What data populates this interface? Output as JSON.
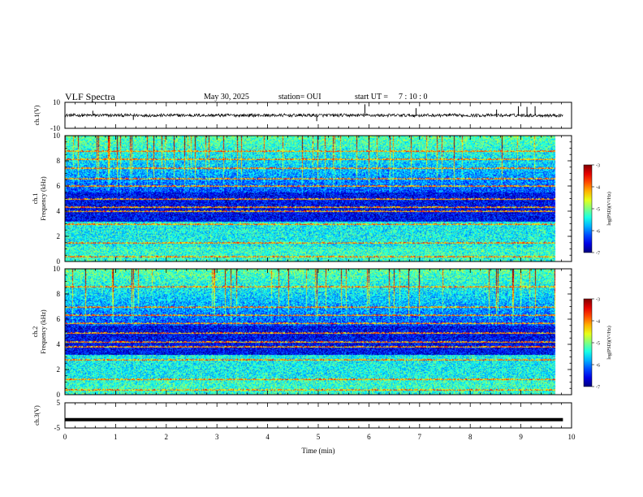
{
  "header": {
    "title": "VLF Spectra",
    "date": "May 30, 2025",
    "station": "station= OUI",
    "start_ut_label": "start  UT  =",
    "start_ut_value": "7 : 10 : 0"
  },
  "chart_data": [
    {
      "type": "line",
      "panel": "ch1-waveform",
      "ylabel": "ch.1(V)",
      "y_ticks": [
        "10",
        "-10"
      ],
      "ylim": [
        -10,
        10
      ],
      "xlim": [
        0,
        10
      ],
      "baseline": 0,
      "noise_amplitude": 1.2,
      "data_end_min": 9.83,
      "spikes": [
        {
          "x": 0.55,
          "y": 3.5
        },
        {
          "x": 1.35,
          "y": -3.5
        },
        {
          "x": 4.97,
          "y": -4.5
        },
        {
          "x": 5.92,
          "y": 8.5
        },
        {
          "x": 6.93,
          "y": 5.5
        },
        {
          "x": 8.52,
          "y": 4.5
        },
        {
          "x": 8.95,
          "y": 7.0
        },
        {
          "x": 9.12,
          "y": 6.5
        },
        {
          "x": 9.28,
          "y": 7.0
        }
      ]
    },
    {
      "type": "heatmap",
      "panel": "ch1-spectrogram",
      "ylabel_line1": "ch.1",
      "ylabel_line2": "Frequency  (kHz)",
      "y_ticks": [
        "0",
        "2",
        "4",
        "6",
        "8",
        "10"
      ],
      "ylim": [
        0,
        10
      ],
      "xlim": [
        0,
        10
      ],
      "data_end_min": 9.83,
      "color_scale": {
        "label": "log(PSD)(V²/Hz)",
        "ticks": [
          "-3",
          "-4",
          "-5",
          "-6",
          "-7"
        ],
        "range": [
          -7,
          -3
        ]
      },
      "spectral_lines_khz": [
        0.4,
        1.5,
        3.0,
        4.0,
        4.3,
        5.0,
        6.0,
        6.6,
        7.4,
        8.1,
        8.8
      ]
    },
    {
      "type": "heatmap",
      "panel": "ch2-spectrogram",
      "ylabel_line1": "ch.2",
      "ylabel_line2": "Frequency  (kHz)",
      "y_ticks": [
        "0",
        "2",
        "4",
        "6",
        "8",
        "10"
      ],
      "ylim": [
        0,
        10
      ],
      "xlim": [
        0,
        10
      ],
      "data_end_min": 9.83,
      "color_scale": {
        "label": "log(PSD)(V²/Hz)",
        "ticks": [
          "-3",
          "-4",
          "-5",
          "-6",
          "-7"
        ],
        "range": [
          -7,
          -3
        ]
      },
      "spectral_lines_khz": [
        0.4,
        1.2,
        2.8,
        3.8,
        4.2,
        4.9,
        5.7,
        6.3,
        7.0,
        8.6
      ]
    },
    {
      "type": "line",
      "panel": "ch3-waveform",
      "ylabel": "ch.3(V)",
      "y_ticks": [
        "5",
        "-5"
      ],
      "ylim": [
        -5,
        5
      ],
      "xlim": [
        0,
        10
      ],
      "baseline": -1.7,
      "data_end_min": 9.83
    }
  ],
  "x_axis": {
    "label": "Time  (min)",
    "ticks": [
      "0",
      "1",
      "2",
      "3",
      "4",
      "5",
      "6",
      "7",
      "8",
      "9",
      "10"
    ]
  }
}
